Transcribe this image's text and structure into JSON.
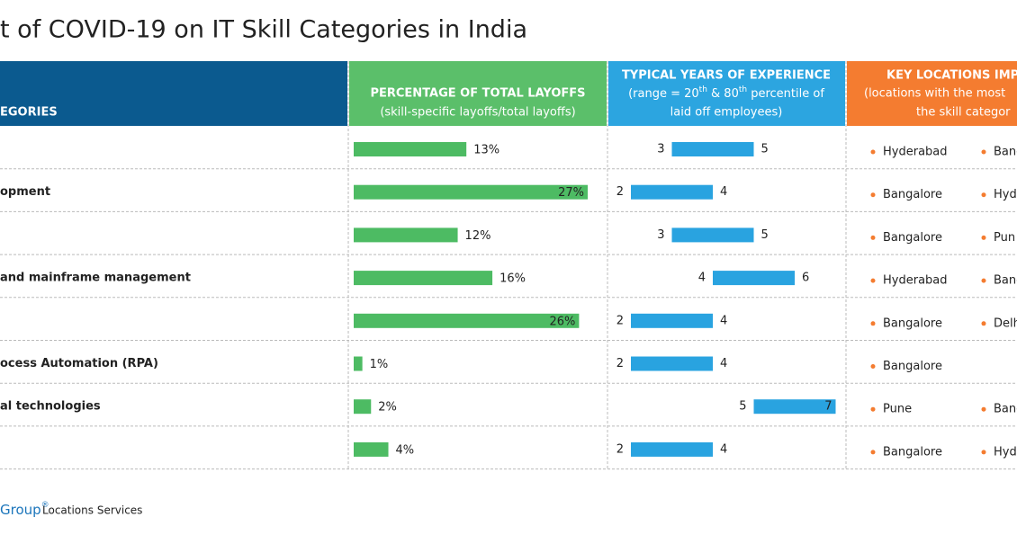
{
  "title": "t of COVID-19 on IT Skill Categories in India",
  "header": {
    "col1": "EGORIES",
    "col2": [
      "PERCENTAGE OF TOTAL LAYOFFS",
      "(skill-specific layoffs/total layoffs)"
    ],
    "col3": {
      "line1": "TYPICAL YEARS OF EXPERIENCE",
      "line2": [
        "(range = 20",
        "th",
        " & 80",
        "th",
        " percentile of"
      ],
      "line3": "laid off employees)"
    },
    "col4": [
      "KEY LOCATIONS IMPA",
      "(locations with the most",
      "the skill categor"
    ]
  },
  "rows": [
    {
      "layoff_pct": 13,
      "layoff_label": "13%",
      "exp_low": 3,
      "exp_high": 5,
      "locations": [
        "Hyderabad",
        "Bang"
      ]
    },
    {
      "category": "opment",
      "layoff_pct": 27,
      "layoff_label": "27%",
      "exp_low": 2,
      "exp_high": 4,
      "locations": [
        "Bangalore",
        "Hyd"
      ]
    },
    {
      "layoff_pct": 12,
      "layoff_label": "12%",
      "exp_low": 3,
      "exp_high": 5,
      "locations": [
        "Bangalore",
        "Pun"
      ]
    },
    {
      "category": "and mainframe management",
      "layoff_pct": 16,
      "layoff_label": "16%",
      "exp_low": 4,
      "exp_high": 6,
      "locations": [
        "Hyderabad",
        "Bang"
      ]
    },
    {
      "layoff_pct": 26,
      "layoff_label": "26%",
      "exp_low": 2,
      "exp_high": 4,
      "locations": [
        "Bangalore",
        "Delh"
      ]
    },
    {
      "category": "ocess Automation (RPA)",
      "layoff_pct": 1,
      "layoff_label": "1%",
      "exp_low": 2,
      "exp_high": 4,
      "locations": [
        "Bangalore"
      ]
    },
    {
      "category": "al technologies",
      "layoff_pct": 2,
      "layoff_label": "2%",
      "exp_low": 5,
      "exp_high": 7,
      "locations": [
        "Pune",
        "Bang"
      ]
    },
    {
      "layoff_pct": 4,
      "layoff_label": "4%",
      "exp_low": 2,
      "exp_high": 4,
      "locations": [
        "Bangalore",
        "Hyd"
      ]
    }
  ],
  "footer": {
    "brand": "Group",
    "mark": "®",
    "service": "Locations Services"
  }
}
